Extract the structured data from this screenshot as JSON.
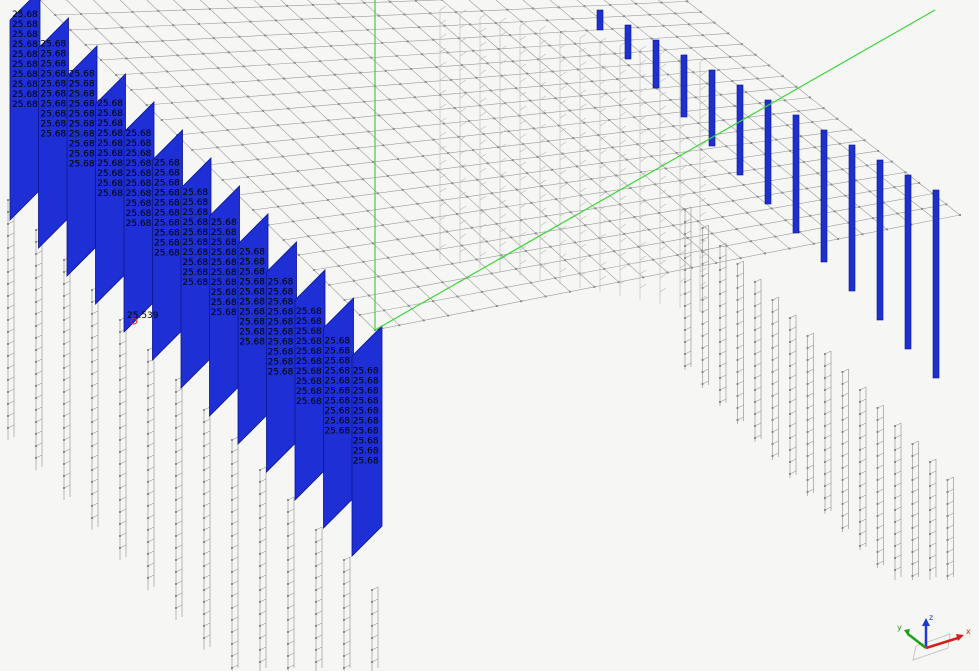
{
  "viewport": {
    "background": "#f6f6f4",
    "colors": {
      "mesh_line": "#9a9a9a",
      "mesh_node": "#8c8c8c",
      "blue_panel": "#1f2fd6",
      "blue_edge": "#0a148a",
      "global_axis": "#3bd63b",
      "label_text": "#000000",
      "selected_node": "#d42020"
    },
    "element_label": "25.68",
    "special_label": "25.539",
    "label_rows": 48,
    "label_cols": 13
  },
  "triad": {
    "x_label": "x",
    "y_label": "y",
    "z_label": "z",
    "x_color": "#d42020",
    "y_color": "#18a018",
    "z_color": "#1a3ad6"
  }
}
